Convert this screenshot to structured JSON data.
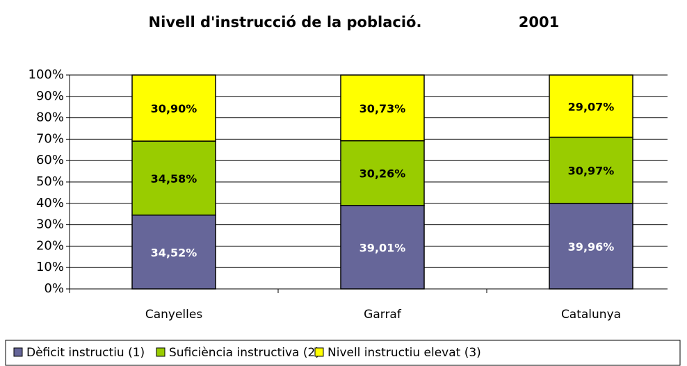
{
  "chart_data": {
    "type": "stacked_bar",
    "title": "Nivell d'instrucció de la població.",
    "subtitle": "2001",
    "categories": [
      "Canyelles",
      "Garraf",
      "Catalunya"
    ],
    "series": [
      {
        "name": "Dèficit instructiu (1)",
        "color": "#666699",
        "values": [
          34.52,
          39.01,
          39.96
        ],
        "value_labels": [
          "34,52%",
          "39,01%",
          "39,96%"
        ]
      },
      {
        "name": "Suficiència instructiva (2)",
        "color": "#99cc00",
        "values": [
          34.58,
          30.26,
          30.97
        ],
        "value_labels": [
          "34,58%",
          "30,26%",
          "30,97%"
        ]
      },
      {
        "name": "Nivell instructiu elevat (3)",
        "color": "#ffff00",
        "values": [
          30.9,
          30.73,
          29.07
        ],
        "value_labels": [
          "30,90%",
          "30,73%",
          "29,07%"
        ]
      }
    ],
    "ylim": [
      0,
      100
    ],
    "yticks": [
      {
        "value": 0,
        "label": "0%"
      },
      {
        "value": 10,
        "label": "10%"
      },
      {
        "value": 20,
        "label": "20%"
      },
      {
        "value": 30,
        "label": "30%"
      },
      {
        "value": 40,
        "label": "40%"
      },
      {
        "value": 50,
        "label": "50%"
      },
      {
        "value": 60,
        "label": "60%"
      },
      {
        "value": 70,
        "label": "70%"
      },
      {
        "value": 80,
        "label": "80%"
      },
      {
        "value": 90,
        "label": "90%"
      },
      {
        "value": 100,
        "label": "100%"
      }
    ],
    "grid": true,
    "legend": "bottom"
  }
}
